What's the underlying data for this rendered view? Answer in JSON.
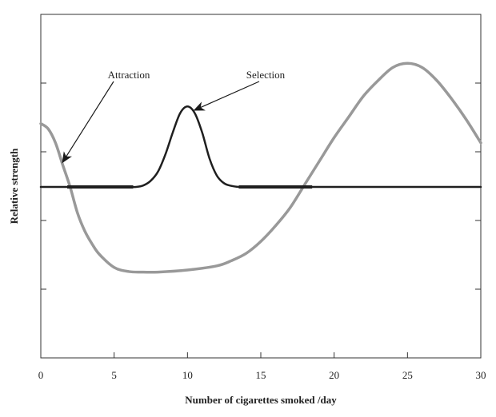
{
  "chart_data": {
    "type": "line",
    "title": "",
    "xlabel": "Number of cigarettes smoked /day",
    "ylabel": "Relative strength",
    "xlim": [
      0,
      30
    ],
    "x_ticks": [
      0,
      5,
      10,
      15,
      20,
      25,
      30
    ],
    "y_ticks_labeled": false,
    "grid": false,
    "legend": "none",
    "series": [
      {
        "name": "Attraction",
        "color": "#999999",
        "x": [
          0,
          0.5,
          1,
          1.5,
          2,
          2.5,
          3,
          3.5,
          4,
          5,
          6,
          7,
          8,
          10,
          12,
          13,
          14,
          15,
          16,
          17,
          18,
          19,
          20,
          21,
          22,
          23,
          24,
          25,
          26,
          27,
          28,
          29,
          30
        ],
        "y": [
          1.22,
          1.12,
          0.85,
          0.42,
          0.0,
          -0.5,
          -0.85,
          -1.1,
          -1.3,
          -1.55,
          -1.63,
          -1.64,
          -1.64,
          -1.6,
          -1.52,
          -1.42,
          -1.28,
          -1.05,
          -0.75,
          -0.4,
          0.05,
          0.5,
          0.95,
          1.35,
          1.75,
          2.05,
          2.3,
          2.38,
          2.3,
          2.05,
          1.7,
          1.3,
          0.85
        ]
      },
      {
        "name": "Selection",
        "color": "#1f1f1f",
        "x": [
          0,
          1,
          2,
          3,
          4,
          5,
          6,
          6.5,
          7,
          7.5,
          8,
          8.5,
          9,
          9.5,
          10,
          10.5,
          11,
          11.5,
          12,
          12.5,
          13,
          13.5,
          14,
          16,
          18,
          20,
          22,
          24,
          26,
          28,
          30
        ],
        "y": [
          0,
          0,
          0,
          0,
          0,
          0,
          0,
          0,
          0.03,
          0.12,
          0.3,
          0.63,
          1.05,
          1.42,
          1.55,
          1.42,
          1.05,
          0.55,
          0.22,
          0.07,
          0.02,
          0,
          0,
          0,
          0,
          0,
          0,
          0,
          0,
          0,
          0
        ]
      }
    ],
    "baseline_segments": [
      {
        "x": [
          1.8,
          6.3
        ],
        "y": 0
      },
      {
        "x": [
          13.5,
          18.5
        ],
        "y": 0
      }
    ],
    "annotations": [
      {
        "text": "Attraction",
        "series": "Attraction",
        "point": {
          "x": 1.5,
          "y": 0.42
        }
      },
      {
        "text": "Selection",
        "series": "Selection",
        "point": {
          "x": 10.5,
          "y": 1.42
        }
      }
    ]
  }
}
